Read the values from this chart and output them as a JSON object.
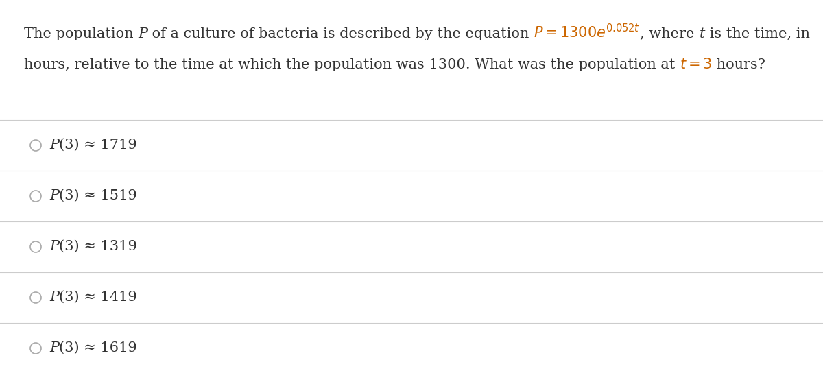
{
  "background_color": "#ffffff",
  "text_color": "#333333",
  "formula_color": "#cc6600",
  "separator_color": "#cccccc",
  "circle_color": "#aaaaaa",
  "choices": [
    "P(3) ≈ 1719",
    "P(3) ≈ 1519",
    "P(3) ≈ 1319",
    "P(3) ≈ 1419",
    "P(3) ≈ 1619"
  ],
  "text_fontsize": 15,
  "choice_fontsize": 15,
  "figsize": [
    12.0,
    5.44
  ],
  "dpi": 100,
  "q_line1_parts": [
    {
      "text": "The population ",
      "style": "normal",
      "color": "#333333"
    },
    {
      "text": "P",
      "style": "italic",
      "color": "#333333"
    },
    {
      "text": " of a culture of bacteria is described by the equation ",
      "style": "normal",
      "color": "#333333"
    },
    {
      "text": "$P = 1300e^{0.052t}$",
      "style": "math",
      "color": "#cc6600"
    },
    {
      "text": ", where ",
      "style": "normal",
      "color": "#333333"
    },
    {
      "text": "t",
      "style": "italic",
      "color": "#333333"
    },
    {
      "text": " is the time, in",
      "style": "normal",
      "color": "#333333"
    }
  ],
  "q_line2_parts": [
    {
      "text": "hours, relative to the time at which the population was 1300. What was the population at ",
      "style": "normal",
      "color": "#333333"
    },
    {
      "text": "$t = 3$",
      "style": "math",
      "color": "#cc6600"
    },
    {
      "text": " hours?",
      "style": "normal",
      "color": "#333333"
    }
  ]
}
